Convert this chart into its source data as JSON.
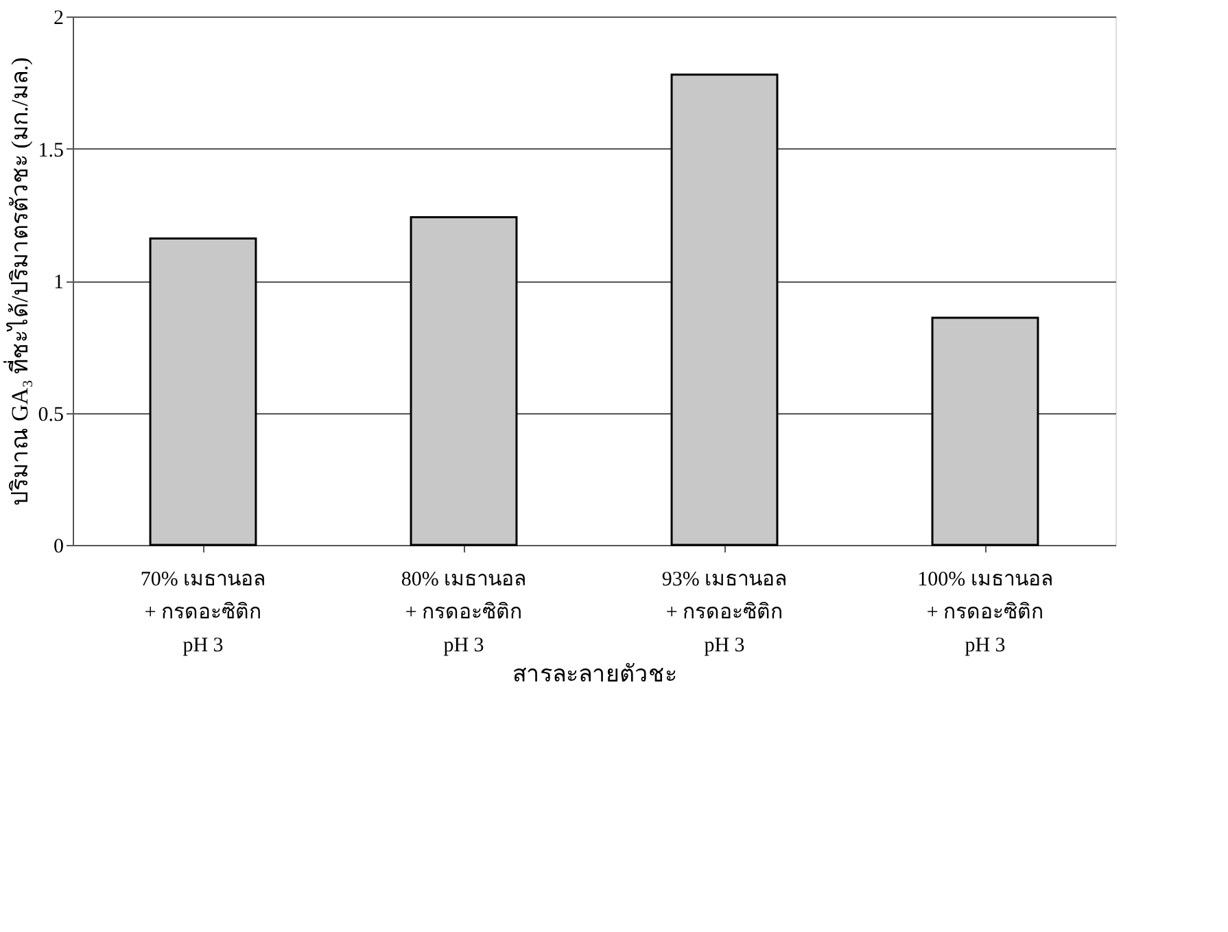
{
  "chart_data": {
    "type": "bar",
    "xlabel": "สารละลายตัวชะ",
    "ylabel": "ปริมาณ GA₃ ที่ชะได้/ปริมาตรตัวชะ (มก./มล.)",
    "categories": [
      "70% เมธานอล\n+ กรดอะซิติก\npH 3",
      "80% เมธานอล\n+ กรดอะซิติก\npH 3",
      "93% เมธานอล\n+ กรดอะซิติก\npH 3",
      "100% เมธานอล\n+ กรดอะซิติก\npH 3"
    ],
    "values": [
      1.16,
      1.24,
      1.78,
      0.86
    ],
    "color": "#c8c8c8",
    "ylim": [
      0,
      2
    ],
    "yticks": [
      0,
      0.5,
      1,
      1.5,
      2
    ],
    "grid": "y",
    "legend": false
  }
}
